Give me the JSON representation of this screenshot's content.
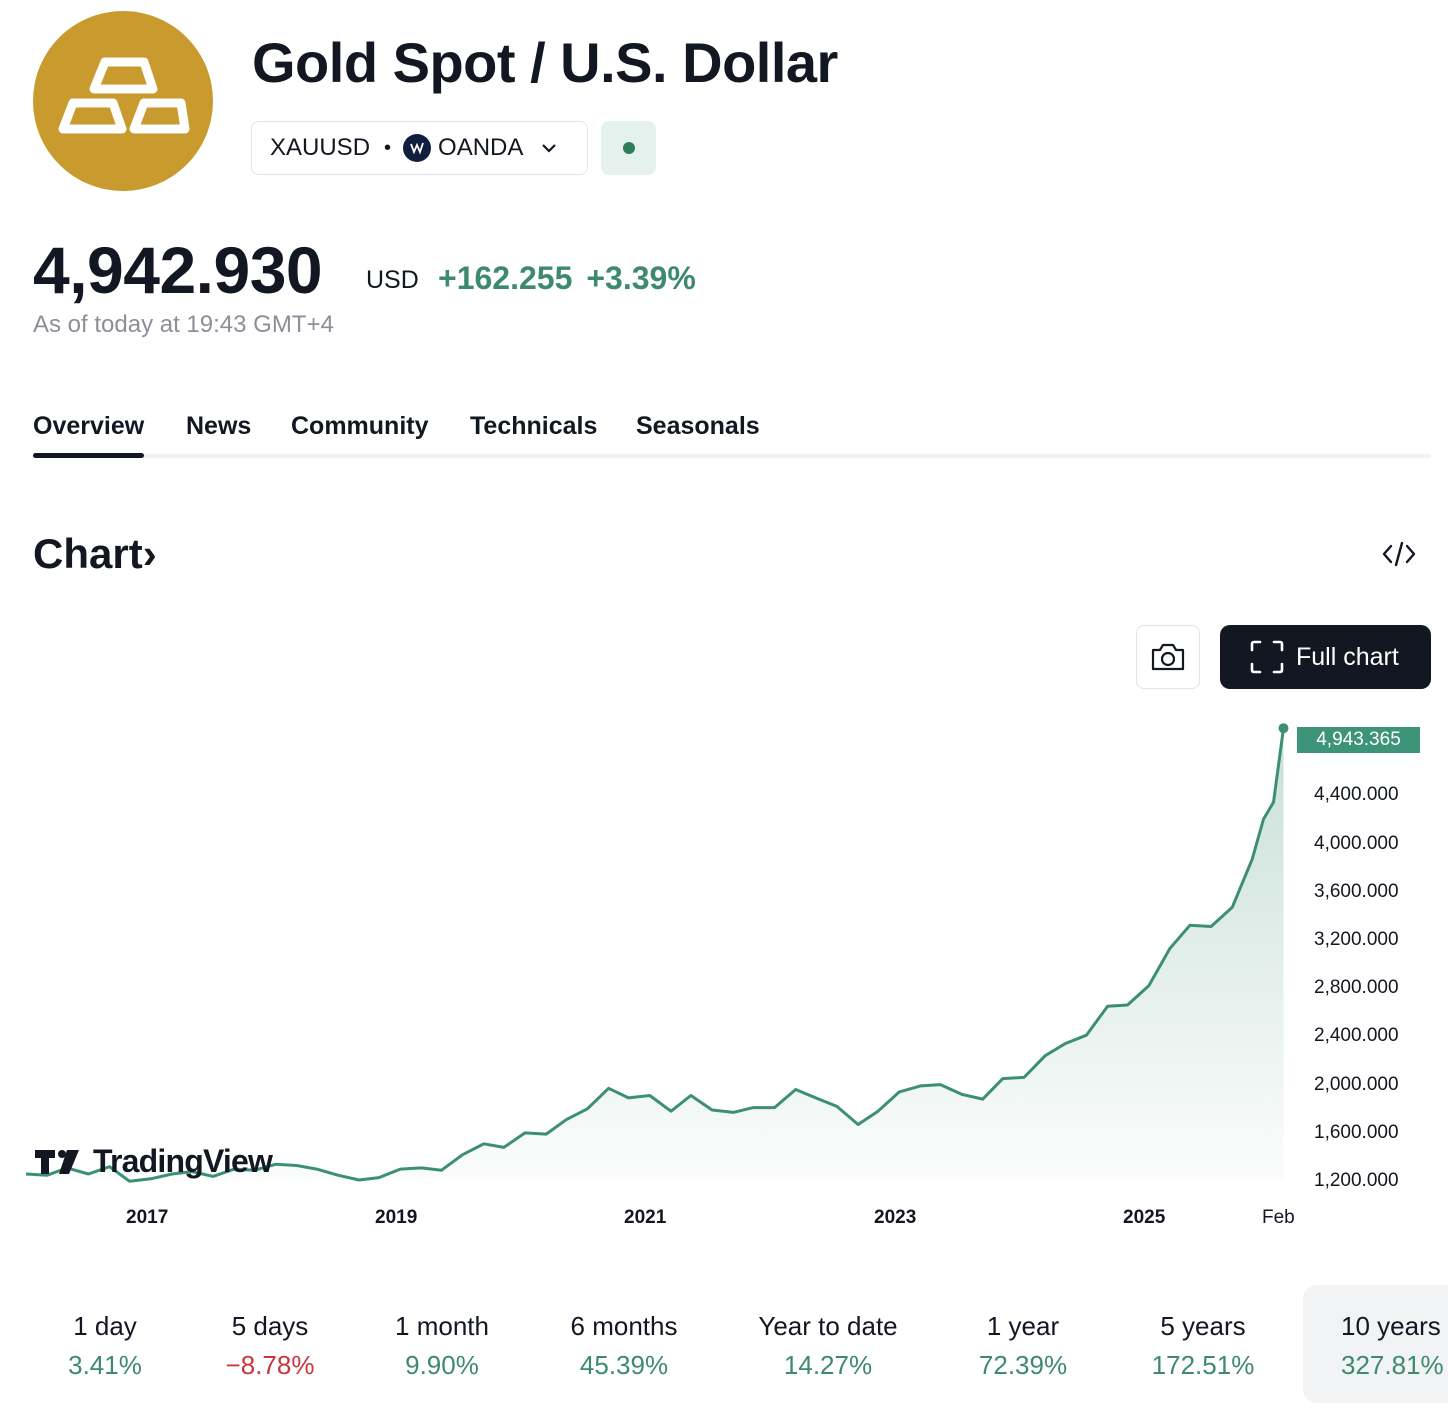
{
  "header": {
    "title": "Gold Spot / U.S. Dollar",
    "symbol": "XAUUSD",
    "separator": "•",
    "exchange": "OANDA"
  },
  "quote": {
    "price": "4,942.930",
    "currency": "USD",
    "change": "+162.255",
    "change_percent": "+3.39%",
    "as_of": "As of today at 19:43 GMT+4"
  },
  "tabs": [
    {
      "label": "Overview",
      "active": true
    },
    {
      "label": "News"
    },
    {
      "label": "Community"
    },
    {
      "label": "Technicals"
    },
    {
      "label": "Seasonals"
    }
  ],
  "chart_section": {
    "heading": "Chart",
    "heading_arrow": "›",
    "full_chart_label": "Full chart",
    "watermark": "TradingView"
  },
  "chart_data": {
    "type": "area",
    "x_tick_labels": [
      "2017",
      "2019",
      "2021",
      "2023",
      "2025",
      "Feb"
    ],
    "y_tick_labels": [
      "4,400.000",
      "4,000.000",
      "3,600.000",
      "3,200.000",
      "2,800.000",
      "2,400.000",
      "2,000.000",
      "1,600.000",
      "1,200.000"
    ],
    "ylim": [
      1200,
      4950
    ],
    "last_value_label": "4,943.365",
    "last_value": 4943.365,
    "series": [
      {
        "x": [
          2016.0,
          2016.17,
          2016.33,
          2016.5,
          2016.67,
          2016.83,
          2017.0,
          2017.17,
          2017.33,
          2017.5,
          2017.67,
          2017.83,
          2018.0,
          2018.17,
          2018.33,
          2018.5,
          2018.67,
          2018.83,
          2019.0,
          2019.17,
          2019.33,
          2019.5,
          2019.67,
          2019.83,
          2020.0,
          2020.17,
          2020.33,
          2020.5,
          2020.67,
          2020.83,
          2021.0,
          2021.17,
          2021.33,
          2021.5,
          2021.67,
          2021.83,
          2022.0,
          2022.17,
          2022.33,
          2022.5,
          2022.67,
          2022.83,
          2023.0,
          2023.17,
          2023.33,
          2023.5,
          2023.67,
          2023.83,
          2024.0,
          2024.17,
          2024.33,
          2024.5,
          2024.67,
          2024.83,
          2025.0,
          2025.17,
          2025.33,
          2025.5,
          2025.67,
          2025.83,
          2025.92,
          2026.0,
          2026.08
        ],
        "values": [
          1250,
          1240,
          1300,
          1250,
          1310,
          1190,
          1210,
          1250,
          1270,
          1230,
          1290,
          1280,
          1330,
          1320,
          1290,
          1240,
          1200,
          1220,
          1290,
          1300,
          1280,
          1410,
          1500,
          1470,
          1590,
          1580,
          1700,
          1790,
          1960,
          1880,
          1900,
          1770,
          1900,
          1780,
          1760,
          1800,
          1800,
          1950,
          1880,
          1810,
          1660,
          1770,
          1930,
          1980,
          1990,
          1910,
          1870,
          2040,
          2050,
          2230,
          2330,
          2400,
          2640,
          2650,
          2810,
          3120,
          3310,
          3300,
          3460,
          3860,
          4190,
          4330,
          4943
        ]
      }
    ],
    "legend": "none",
    "grid": false
  },
  "periods": [
    {
      "label": "1 day",
      "value": "3.41%",
      "dir": "pos"
    },
    {
      "label": "5 days",
      "value": "−8.78%",
      "dir": "neg"
    },
    {
      "label": "1 month",
      "value": "9.90%",
      "dir": "pos"
    },
    {
      "label": "6 months",
      "value": "45.39%",
      "dir": "pos"
    },
    {
      "label": "Year to date",
      "value": "14.27%",
      "dir": "pos"
    },
    {
      "label": "1 year",
      "value": "72.39%",
      "dir": "pos"
    },
    {
      "label": "5 years",
      "value": "172.51%",
      "dir": "pos"
    },
    {
      "label": "10 years",
      "value": "327.81%",
      "dir": "pos",
      "selected": true
    }
  ],
  "colors": {
    "brand_gold": "#c99a2e",
    "positive": "#3d8a70",
    "negative": "#c9363e",
    "line": "#3d8f73",
    "dark_button": "#131722"
  },
  "icons": {
    "logo": "gold-bars-icon",
    "exchange": "oanda-icon",
    "dropdown": "chevron-down-icon",
    "status": "market-open-dot-icon",
    "embed": "code-embed-icon",
    "camera": "camera-icon",
    "fullscreen": "fullscreen-icon"
  }
}
